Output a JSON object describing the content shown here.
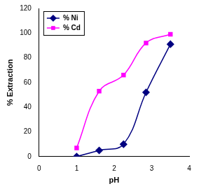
{
  "chart_data": {
    "type": "line",
    "x_label": "pH",
    "y_label": "% Extraction",
    "x": [
      1.0,
      1.6,
      2.25,
      2.85,
      3.5
    ],
    "series": [
      {
        "name": "% Ni",
        "color": "#000080",
        "marker": "diamond",
        "values": [
          0,
          5,
          10,
          52,
          91
        ]
      },
      {
        "name": "% Cd",
        "color": "#ff00ff",
        "marker": "square",
        "values": [
          7,
          53,
          66,
          92,
          99
        ]
      }
    ],
    "xlim": [
      0,
      4
    ],
    "xticks": [
      0,
      1,
      2,
      3,
      4
    ],
    "ylim": [
      0,
      120
    ],
    "yticks": [
      0,
      20,
      40,
      60,
      80,
      100,
      120
    ],
    "grid": false,
    "legend": "top-left",
    "line_style": "smooth"
  }
}
